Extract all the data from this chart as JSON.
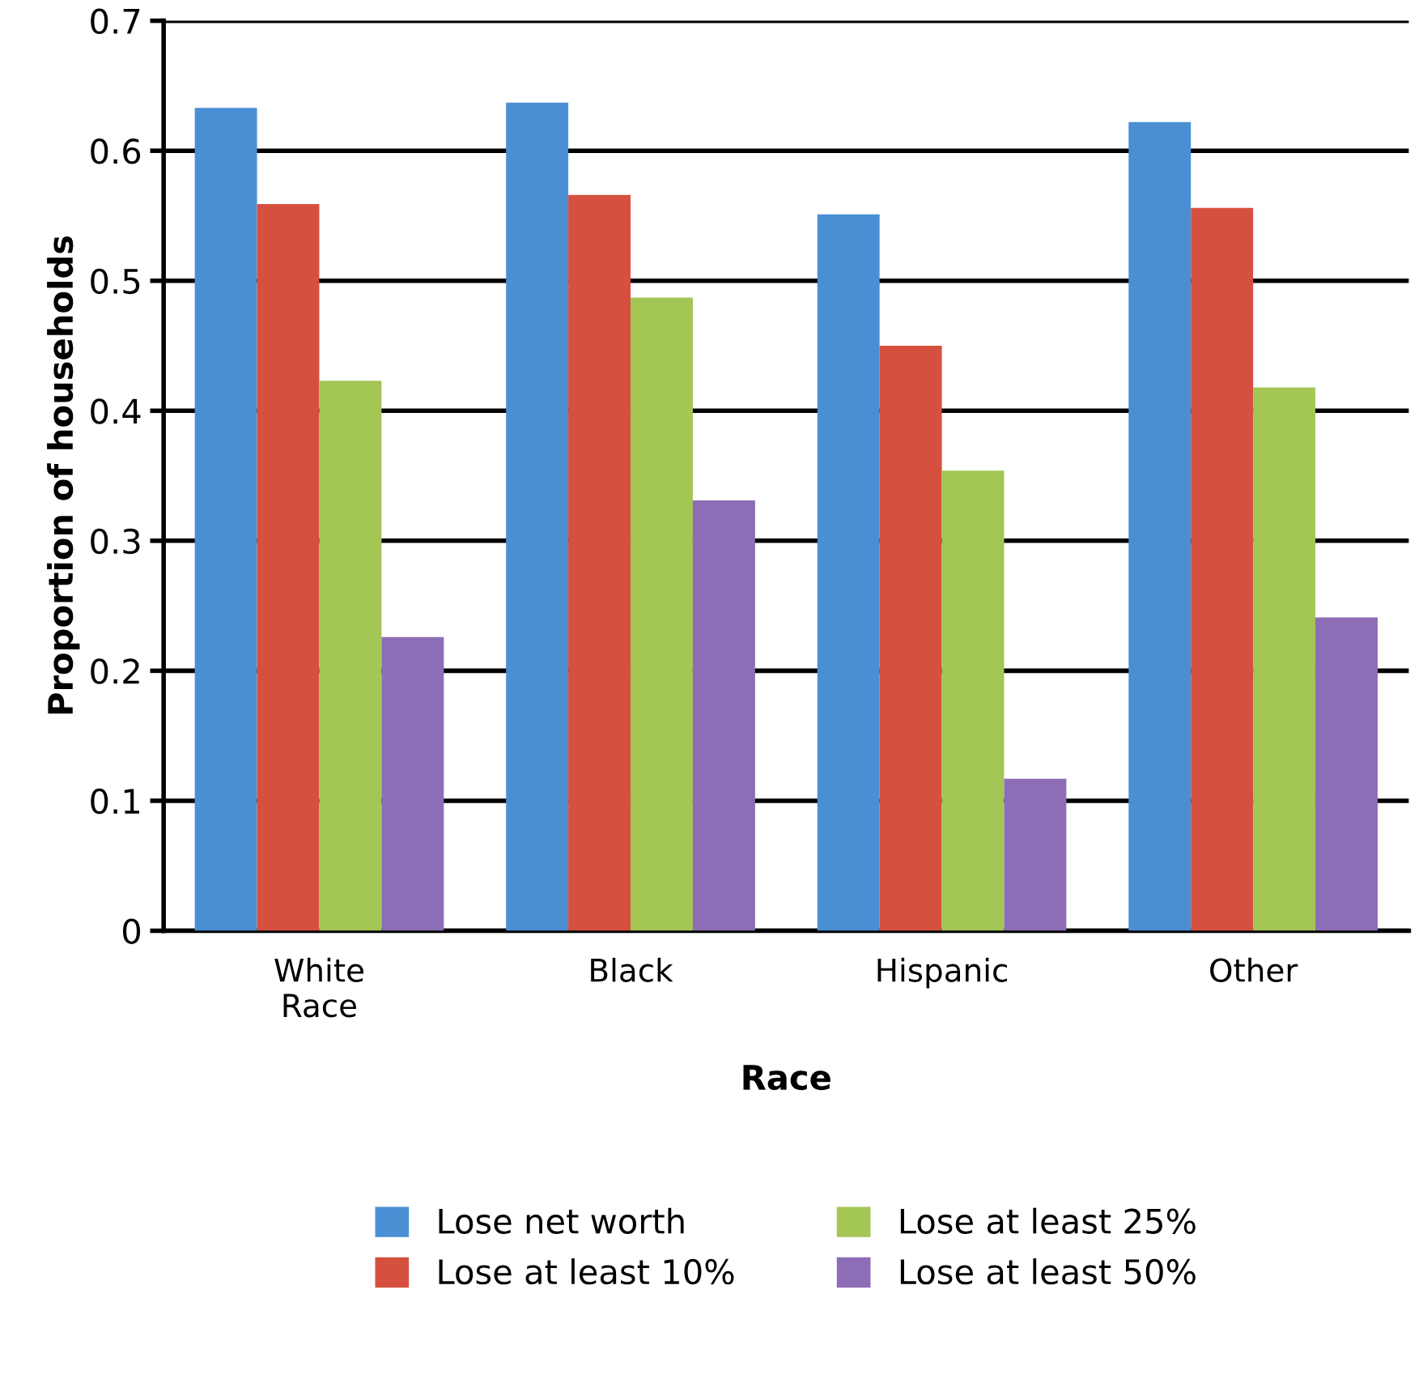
{
  "chart_data": {
    "type": "bar",
    "xlabel": "Race",
    "ylabel": "Proportion of households",
    "categories": [
      "White\nRace",
      "Black",
      "Hispanic",
      "Other"
    ],
    "series": [
      {
        "name": "Lose net worth",
        "color": "#4a8fd4",
        "values": [
          0.633,
          0.637,
          0.551,
          0.622
        ]
      },
      {
        "name": "Lose at least 10%",
        "color": "#d6503f",
        "values": [
          0.559,
          0.566,
          0.45,
          0.556
        ]
      },
      {
        "name": "Lose at least 25%",
        "color": "#a3c655",
        "values": [
          0.423,
          0.487,
          0.354,
          0.418
        ]
      },
      {
        "name": "Lose at least 50%",
        "color": "#8d6db5",
        "values": [
          0.226,
          0.331,
          0.117,
          0.241
        ]
      }
    ],
    "ylim": [
      0,
      0.7
    ],
    "yticks": [
      0,
      0.1,
      0.2,
      0.3,
      0.4,
      0.5,
      0.6,
      0.7
    ],
    "grid": "y",
    "legend": "bottom"
  }
}
